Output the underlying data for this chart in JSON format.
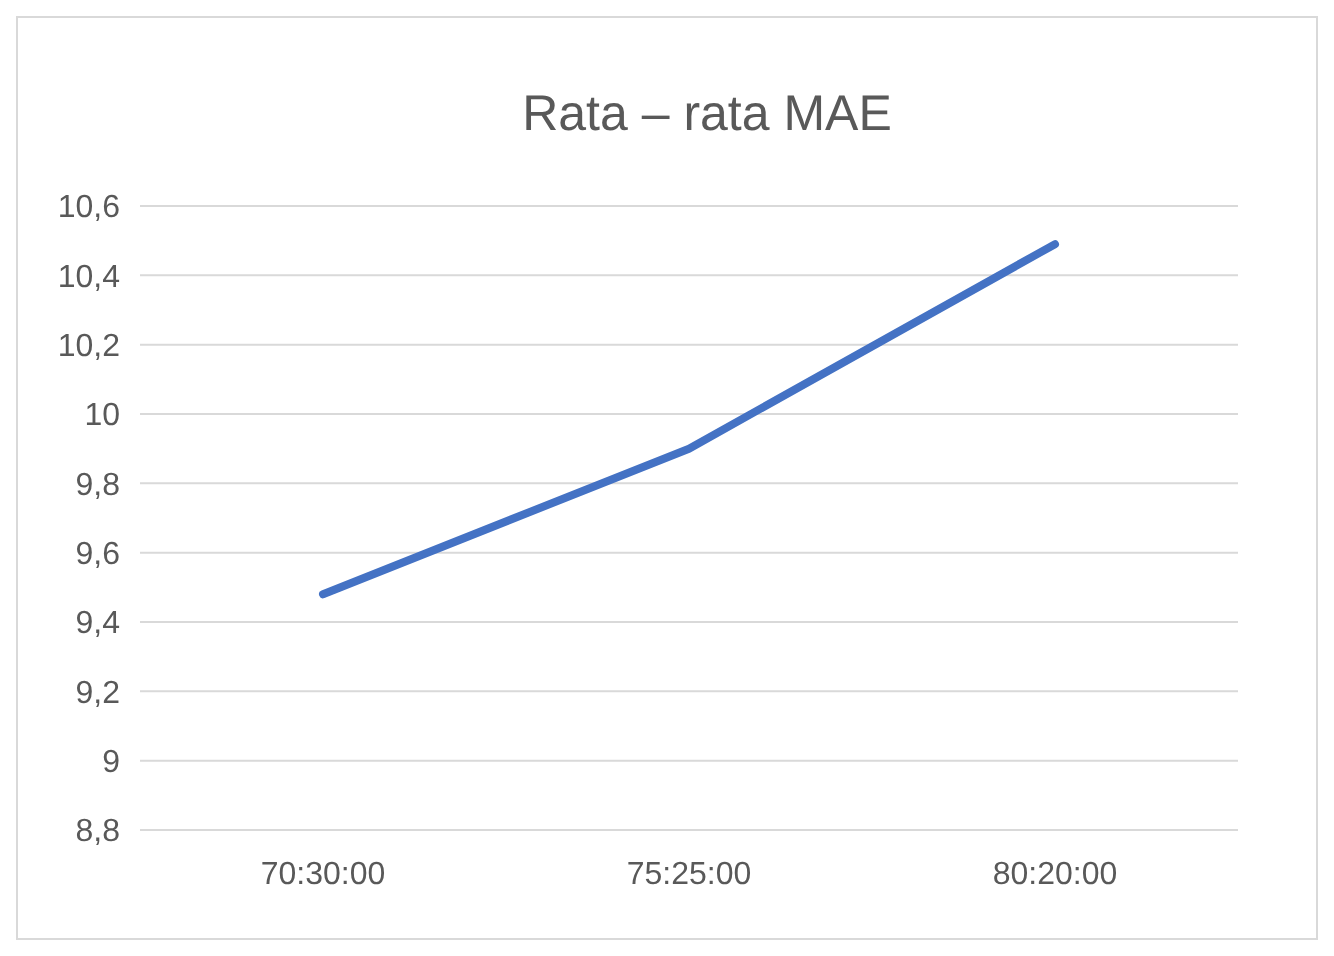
{
  "chart_data": {
    "type": "line",
    "title": "Rata – rata MAE",
    "categories": [
      "70:30:00",
      "75:25:00",
      "80:20:00"
    ],
    "series": [
      {
        "color": "#4472c4",
        "values": [
          9.48,
          9.9,
          10.49
        ]
      }
    ],
    "ylim": [
      8.8,
      10.6
    ],
    "yticks": [
      {
        "value": 8.8,
        "label": "8,8"
      },
      9,
      {
        "value": 9.2,
        "label": "9,2"
      },
      {
        "value": 9.4,
        "label": "9,4"
      },
      {
        "value": 9.6,
        "label": "9,6"
      },
      {
        "value": 9.8,
        "label": "9,8"
      },
      10,
      {
        "value": 10.2,
        "label": "10,2"
      },
      {
        "value": 10.4,
        "label": "10,4"
      },
      {
        "value": 10.6,
        "label": "10,6"
      }
    ],
    "grid": "y",
    "marker": "none",
    "line_style": "solid"
  }
}
